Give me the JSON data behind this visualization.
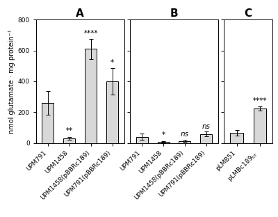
{
  "panel_A": {
    "categories": [
      "UPM791",
      "UPM1458",
      "UPM1458(pBBRc189)",
      "UPM791(pBBRc189)"
    ],
    "values": [
      260,
      32,
      610,
      400
    ],
    "errors": [
      75,
      10,
      65,
      85
    ],
    "significance": [
      "",
      "**",
      "****",
      "*"
    ],
    "title": "A",
    "bar_color": "#d8d8d8"
  },
  "panel_B": {
    "categories": [
      "UPM791",
      "UPM1458",
      "UPM1458(pBBRc189)",
      "UPM791(pBBRc189)"
    ],
    "values": [
      42,
      10,
      15,
      60
    ],
    "errors": [
      20,
      5,
      8,
      15
    ],
    "significance": [
      "",
      "*",
      "ns",
      "ns"
    ],
    "title": "B",
    "bar_color": "#d8d8d8"
  },
  "panel_C": {
    "categories": [
      "pLMB51",
      "pLMBc189ST"
    ],
    "values": [
      65,
      225
    ],
    "errors": [
      18,
      12
    ],
    "significance": [
      "",
      "****"
    ],
    "title": "C",
    "bar_color": "#d8d8d8"
  },
  "ylim": [
    0,
    800
  ],
  "yticks": [
    0,
    200,
    400,
    600,
    800
  ],
  "ylabel": "nmol glutamate · mg protein⁻¹",
  "background_color": "#ffffff",
  "title_fontsize": 11,
  "tick_fontsize": 6.5,
  "label_fontsize": 7,
  "sig_fontsize": 7.5
}
